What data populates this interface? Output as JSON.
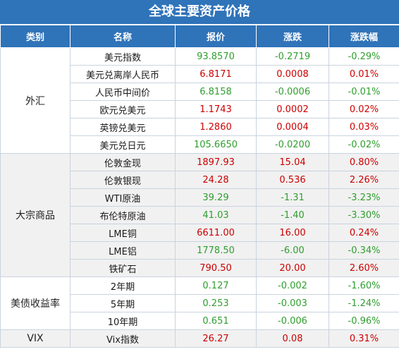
{
  "title": "全球主要资产价格",
  "headers": {
    "category": "类别",
    "name": "名称",
    "price": "报价",
    "change": "涨跌",
    "pct": "涨跌幅"
  },
  "colors": {
    "header_bg": "#2f73b9",
    "up": "#cc0000",
    "down": "#2e9e2e"
  },
  "groups": [
    {
      "category": "外汇",
      "rows": [
        {
          "name": "美元指数",
          "price": "93.8570",
          "change": "-0.2719",
          "pct": "-0.29%",
          "dir": "down"
        },
        {
          "name": "美元兑离岸人民币",
          "price": "6.8171",
          "change": "0.0008",
          "pct": "0.01%",
          "dir": "up"
        },
        {
          "name": "人民币中间价",
          "price": "6.8158",
          "change": "-0.0006",
          "pct": "-0.01%",
          "dir": "down"
        },
        {
          "name": "欧元兑美元",
          "price": "1.1743",
          "change": "0.0002",
          "pct": "0.02%",
          "dir": "up"
        },
        {
          "name": "英镑兑美元",
          "price": "1.2860",
          "change": "0.0004",
          "pct": "0.03%",
          "dir": "up"
        },
        {
          "name": "美元兑日元",
          "price": "105.6650",
          "change": "-0.0200",
          "pct": "-0.02%",
          "dir": "down"
        }
      ]
    },
    {
      "category": "大宗商品",
      "rows": [
        {
          "name": "伦敦金现",
          "price": "1897.93",
          "change": "15.04",
          "pct": "0.80%",
          "dir": "up"
        },
        {
          "name": "伦敦银现",
          "price": "24.28",
          "change": "0.536",
          "pct": "2.26%",
          "dir": "up"
        },
        {
          "name": "WTI原油",
          "price": "39.29",
          "change": "-1.31",
          "pct": "-3.23%",
          "dir": "down"
        },
        {
          "name": "布伦特原油",
          "price": "41.03",
          "change": "-1.40",
          "pct": "-3.30%",
          "dir": "down"
        },
        {
          "name": "LME铜",
          "price": "6611.00",
          "change": "16.00",
          "pct": "0.24%",
          "dir": "up"
        },
        {
          "name": "LME铝",
          "price": "1778.50",
          "change": "-6.00",
          "pct": "-0.34%",
          "dir": "down"
        },
        {
          "name": "铁矿石",
          "price": "790.50",
          "change": "20.00",
          "pct": "2.60%",
          "dir": "up"
        }
      ]
    },
    {
      "category": "美债收益率",
      "rows": [
        {
          "name": "2年期",
          "price": "0.127",
          "change": "-0.002",
          "pct": "-1.60%",
          "dir": "down"
        },
        {
          "name": "5年期",
          "price": "0.253",
          "change": "-0.003",
          "pct": "-1.24%",
          "dir": "down"
        },
        {
          "name": "10年期",
          "price": "0.651",
          "change": "-0.006",
          "pct": "-0.96%",
          "dir": "down"
        }
      ]
    },
    {
      "category": "VIX",
      "rows": [
        {
          "name": "Vix指数",
          "price": "26.27",
          "change": "0.08",
          "pct": "0.31%",
          "dir": "up"
        }
      ]
    }
  ]
}
